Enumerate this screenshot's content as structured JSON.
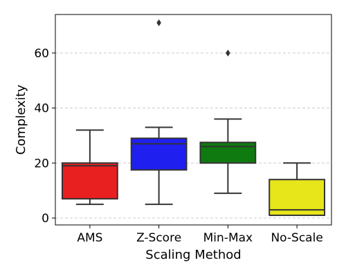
{
  "chart_data": {
    "type": "box",
    "xlabel": "Scaling Method",
    "ylabel": "Complexity",
    "ylim": [
      -2.5,
      74
    ],
    "yticks": [
      0,
      20,
      40,
      60
    ],
    "grid": true,
    "categories": [
      "AMS",
      "Z-Score",
      "Min-Max",
      "No-Scale"
    ],
    "boxes": [
      {
        "category": "AMS",
        "color": "#e8201f",
        "whislo": 5,
        "q1": 7,
        "median": 19,
        "q3": 20,
        "whishi": 32,
        "outliers": []
      },
      {
        "category": "Z-Score",
        "color": "#1f1ff0",
        "whislo": 5,
        "q1": 17.5,
        "median": 27,
        "q3": 29,
        "whishi": 33,
        "outliers": [
          71
        ]
      },
      {
        "category": "Min-Max",
        "color": "#0f7a0f",
        "whislo": 9,
        "q1": 20,
        "median": 26,
        "q3": 27.5,
        "whishi": 36,
        "outliers": [
          60
        ]
      },
      {
        "category": "No-Scale",
        "color": "#e6e61a",
        "whislo": 1,
        "q1": 1,
        "median": 3,
        "q3": 14,
        "whishi": 20,
        "outliers": []
      }
    ]
  }
}
